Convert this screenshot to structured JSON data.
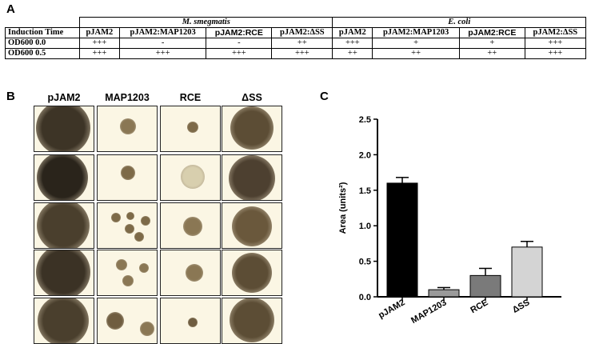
{
  "panels": {
    "a": "A",
    "b": "B",
    "c": "C"
  },
  "table": {
    "organisms": [
      "M. smegmatis",
      "E. coli"
    ],
    "induction_label": "Induction Time",
    "columns": [
      "pJAM2",
      "pJAM2:MAP1203",
      "pJAM2:RCE",
      "pJAM2:ΔSS",
      "pJAM2",
      "pJAM2:MAP1203",
      "pJAM2:RCE",
      "pJAM2:ΔSS"
    ],
    "rows": [
      {
        "label": "OD600 0.0",
        "cells": [
          "+++",
          "-",
          "-",
          "++",
          "+++",
          "+",
          "+",
          "+++"
        ]
      },
      {
        "label": "OD600 0.5",
        "cells": [
          "+++",
          "+++",
          "+++",
          "+++",
          "++",
          "++",
          "++",
          "+++"
        ]
      }
    ]
  },
  "grid": {
    "columns": [
      "pJAM2",
      "MAP1203",
      "RCE",
      "ΔSS"
    ],
    "rows": 5
  },
  "chart_data": {
    "type": "bar",
    "categories": [
      "pJAM2",
      "MAP1203",
      "RCE",
      "ΔSS"
    ],
    "values": [
      1.6,
      0.1,
      0.3,
      0.7
    ],
    "errors": [
      0.08,
      0.03,
      0.1,
      0.08
    ],
    "colors": [
      "#000000",
      "#9a9a9a",
      "#7a7a7a",
      "#d4d4d4"
    ],
    "ylabel": "Area (units²)",
    "ylim": [
      0,
      2.5
    ],
    "yticks": [
      "0.0",
      "0.5",
      "1.0",
      "1.5",
      "2.0",
      "2.5"
    ]
  }
}
